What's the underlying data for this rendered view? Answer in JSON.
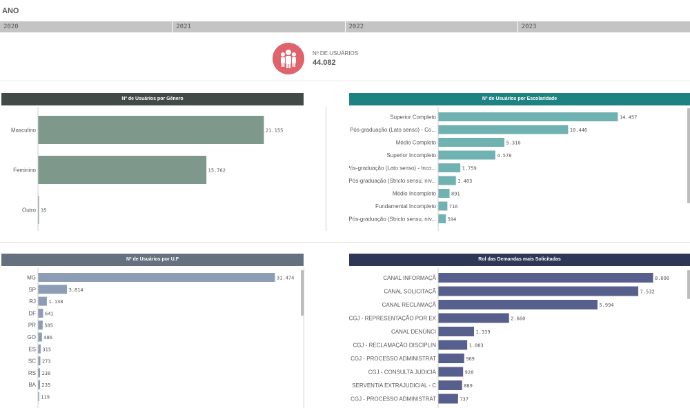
{
  "filter": {
    "title": "ANO",
    "years": [
      "2020",
      "2021",
      "2022",
      "2023"
    ]
  },
  "kpi": {
    "label": "Nº DE USUÁRIOS",
    "value": "44.082",
    "icon": "users-icon",
    "color": "#e0626a"
  },
  "charts": {
    "genero": {
      "title": "Nº de Usuários por Gênero",
      "header_color": "#414a47",
      "bar_color": "#7e998b",
      "chart_data": {
        "type": "bar",
        "orientation": "horizontal",
        "title": "Nº de Usuários por Gênero",
        "categories": [
          "Masculino",
          "Feminino",
          "Outro"
        ],
        "values": [
          21155,
          15762,
          35
        ],
        "labels": [
          "21.155",
          "15.762",
          "35"
        ]
      }
    },
    "escolaridade": {
      "title": "Nº de Usuários por Escolaridade",
      "header_color": "#1f8282",
      "bar_color": "#70b1b1",
      "chart_data": {
        "type": "bar",
        "orientation": "horizontal",
        "title": "Nº de Usuários por Escolaridade",
        "categories": [
          "Superior Completo",
          "Pós-graduação (Lato senso) - Co...",
          "Médio Completo",
          "Superior Incompleto",
          "Pós-graduação (Lato senso) - Inco...",
          "Pós-graduação (Stricto sensu, nív...",
          "Médio Incompleto",
          "Fundamental Incompleto",
          "Pós-graduação (Stricto sensu, nív..."
        ],
        "values": [
          14457,
          10446,
          5310,
          4578,
          1759,
          1403,
          891,
          716,
          594
        ],
        "labels": [
          "14.457",
          "10.446",
          "5.310",
          "4.578",
          "1.759",
          "1.403",
          "891",
          "716",
          "594"
        ]
      }
    },
    "uf": {
      "title": "Nº de Usuários por U.F",
      "header_color": "#66717f",
      "bar_color": "#8c9db5",
      "chart_data": {
        "type": "bar",
        "orientation": "horizontal",
        "title": "Nº de Usuários por U.F",
        "categories": [
          "MG",
          "SP",
          "RJ",
          "DF",
          "PR",
          "GO",
          "ES",
          "SC",
          "RS",
          "BA"
        ],
        "values": [
          31474,
          3814,
          1138,
          641,
          585,
          486,
          315,
          273,
          238,
          235
        ],
        "labels": [
          "31.474",
          "3.814",
          "1.138",
          "641",
          "585",
          "486",
          "315",
          "273",
          "238",
          "235"
        ],
        "next_partial": {
          "value": 119,
          "label": "119"
        }
      }
    },
    "demandas": {
      "title": "Rol das Demandas mais Solicitadas",
      "header_color": "#2e3856",
      "bar_color": "#575f8c",
      "chart_data": {
        "type": "bar",
        "orientation": "horizontal",
        "title": "Rol das Demandas mais Solicitadas",
        "categories": [
          "CANAL INFORMAÇÃ",
          "CANAL SOLICITAÇÃ",
          "CANAL RECLAMAÇÃ",
          "CGJ - REPRESENTAÇÃO POR EX",
          "CANAL DENÚNCI",
          "CGJ - RECLAMAÇÃO DISCIPLIN",
          "CGJ - PROCESSO ADMINISTRAT",
          "CGJ - CONSULTA JUDICIA",
          "SERVENTIA EXTRAJUDICIAL - C",
          "CGJ - PROCESSO ADMINISTRAT"
        ],
        "values": [
          8090,
          7532,
          5994,
          2660,
          1339,
          1083,
          969,
          928,
          889,
          737
        ],
        "labels": [
          "8.090",
          "7.532",
          "5.994",
          "2.660",
          "1.339",
          "1.083",
          "969",
          "928",
          "889",
          "737"
        ]
      }
    }
  }
}
